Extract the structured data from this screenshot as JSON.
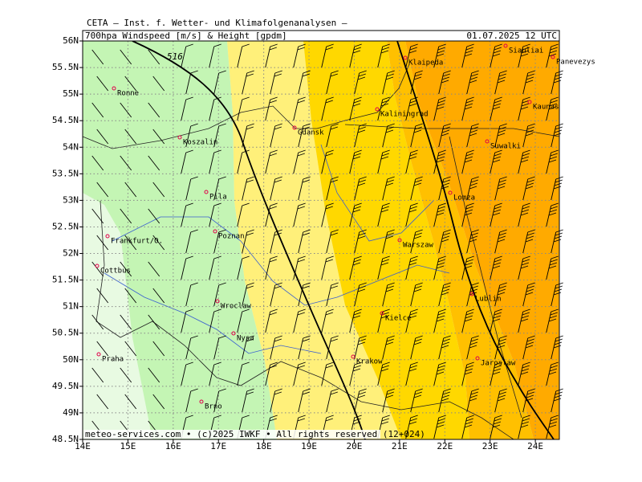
{
  "header": {
    "institute": "CETA – Inst. f. Wetter- und Klimafolgenanalysen –",
    "product": "700hpa Windspeed [m/s] & Height [gpdm]",
    "valid_time": "01.07.2025 12 UTC"
  },
  "map": {
    "xlim": [
      14,
      24.53
    ],
    "ylim": [
      48.5,
      56
    ],
    "xticks": [
      {
        "value": 14,
        "label": "14E"
      },
      {
        "value": 15,
        "label": "15E"
      },
      {
        "value": 16,
        "label": "16E"
      },
      {
        "value": 17,
        "label": "17E"
      },
      {
        "value": 18,
        "label": "18E"
      },
      {
        "value": 19,
        "label": "19E"
      },
      {
        "value": 20,
        "label": "20E"
      },
      {
        "value": 21,
        "label": "21E"
      },
      {
        "value": 22,
        "label": "22E"
      },
      {
        "value": 23,
        "label": "23E"
      },
      {
        "value": 24,
        "label": "24E"
      }
    ],
    "yticks": [
      {
        "value": 56,
        "label": "56N"
      },
      {
        "value": 55.5,
        "label": "55.5N"
      },
      {
        "value": 55,
        "label": "55N"
      },
      {
        "value": 54.5,
        "label": "54.5N"
      },
      {
        "value": 54,
        "label": "54N"
      },
      {
        "value": 53.5,
        "label": "53.5N"
      },
      {
        "value": 53,
        "label": "53N"
      },
      {
        "value": 52.5,
        "label": "52.5N"
      },
      {
        "value": 52,
        "label": "52N"
      },
      {
        "value": 51.5,
        "label": "51.5N"
      },
      {
        "value": 51,
        "label": "51N"
      },
      {
        "value": 50.5,
        "label": "50.5N"
      },
      {
        "value": 50,
        "label": "50N"
      },
      {
        "value": 49.5,
        "label": "49.5N"
      },
      {
        "value": 49,
        "label": "49N"
      },
      {
        "value": 48.5,
        "label": "48.5N"
      }
    ],
    "cities": [
      "Ronne",
      "Koszalin",
      "Pila",
      "Gdansk",
      "Kaliningrad",
      "Klaipeda",
      "Siauliai",
      "Panevezys",
      "Kaunas",
      "Suwalki",
      "Lomza",
      "Warszaw",
      "Poznan",
      "Frankfurt/O.",
      "Cottbus",
      "Wroclaw",
      "Lublin",
      "Kielce",
      "Nysa",
      "Krakow",
      "Jaroslaw",
      "Praha",
      "Brno"
    ],
    "contour_labels": [
      "516"
    ]
  },
  "footer": "meteo-services.com • (c)2025 IWKF • All rights reserved (12+024)"
}
